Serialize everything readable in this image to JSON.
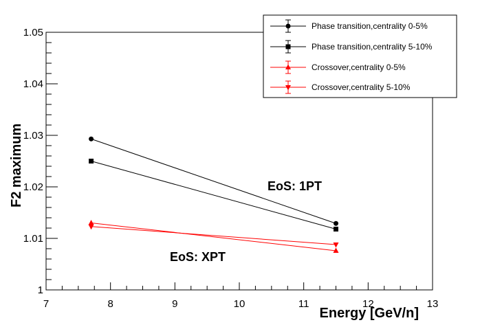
{
  "chart_data": {
    "type": "line",
    "xlabel": "Energy [GeV/n]",
    "ylabel": "F2 maximum",
    "xlim": [
      7,
      13
    ],
    "ylim": [
      1.0,
      1.05
    ],
    "xticks": [
      "7",
      "8",
      "9",
      "10",
      "11",
      "12",
      "13"
    ],
    "yticks": [
      "1",
      "1.01",
      "1.02",
      "1.03",
      "1.04",
      "1.05"
    ],
    "x": [
      7.7,
      11.5
    ],
    "series": [
      {
        "name": "Phase transition,centrality 0-5%",
        "values": [
          1.0293,
          1.0129
        ],
        "color": "#000000",
        "marker": "circle"
      },
      {
        "name": "Phase transition,centrality 5-10%",
        "values": [
          1.025,
          1.0118
        ],
        "color": "#000000",
        "marker": "square"
      },
      {
        "name": "Crossover,centrality 0-5%",
        "values": [
          1.013,
          1.0076
        ],
        "color": "#ff0000",
        "marker": "triangle-up"
      },
      {
        "name": "Crossover,centrality 5-10%",
        "values": [
          1.0123,
          1.0088
        ],
        "color": "#ff0000",
        "marker": "triangle-down"
      }
    ],
    "annotations": [
      "EoS: 1PT",
      "EoS: XPT"
    ],
    "legend_position": "top-right",
    "grid": false
  }
}
